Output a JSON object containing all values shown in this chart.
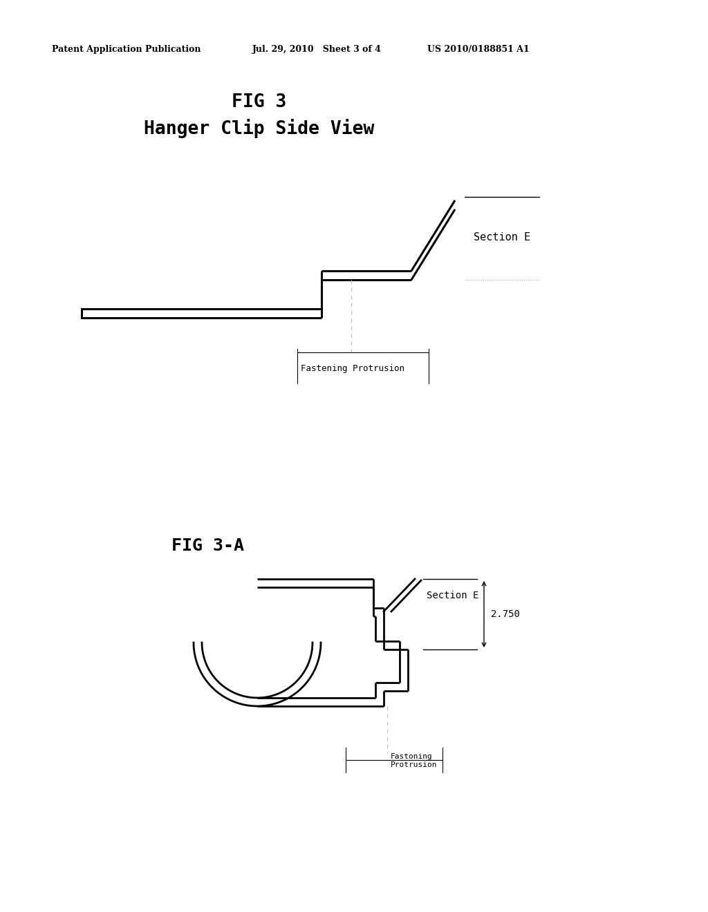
{
  "bg_color": "#ffffff",
  "text_color": "#000000",
  "header_left": "Patent Application Publication",
  "header_mid": "Jul. 29, 2010   Sheet 3 of 4",
  "header_right": "US 2010/0188851 A1",
  "fig3_title_line1": "FIG 3",
  "fig3_title_line2": "Hanger Clip Side View",
  "fig3a_title": "FIG 3-A",
  "section_e_label": "Section E",
  "fastening_protrusion": "Fastening Protrusion",
  "fastening_protrusion_small": "Fastoning\nProtrusion",
  "dimension_label": "2.750",
  "line_color": "#000000"
}
